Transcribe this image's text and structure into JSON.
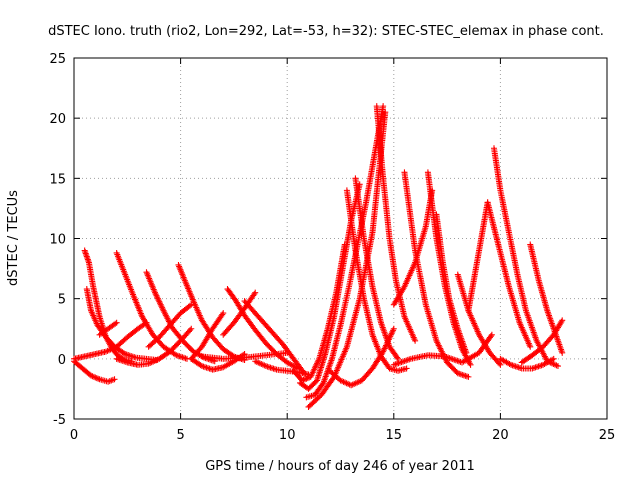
{
  "chart_data": {
    "type": "scatter",
    "title": "dSTEC Iono. truth (rio2, Lon=292, Lat=-53, h=32): STEC-STEC_elemax in phase cont.",
    "xlabel": "GPS time / hours of day 246 of year 2011",
    "ylabel": "dSTEC  / TECUs",
    "xlim": [
      0,
      25
    ],
    "ylim": [
      -5,
      25
    ],
    "xticks": [
      0,
      5,
      10,
      15,
      20,
      25
    ],
    "yticks": [
      -5,
      0,
      5,
      10,
      15,
      20,
      25
    ],
    "grid": true,
    "marker": "+",
    "color": "#ff0000",
    "series": [
      {
        "x": [
          0.0,
          0.4,
          0.8,
          1.2,
          1.6,
          1.9
        ],
        "y": [
          -0.2,
          -0.8,
          -1.4,
          -1.7,
          -1.9,
          -1.7
        ]
      },
      {
        "x": [
          0.0,
          0.5,
          1.0,
          1.5,
          2.0,
          2.5,
          3.0,
          3.4
        ],
        "y": [
          0.0,
          0.2,
          0.4,
          0.6,
          1.0,
          1.8,
          2.5,
          3.0
        ]
      },
      {
        "x": [
          0.5,
          0.7,
          0.9,
          1.2,
          1.5,
          1.8,
          2.1,
          2.4,
          2.7
        ],
        "y": [
          9.0,
          8.0,
          6.0,
          3.5,
          1.8,
          0.8,
          0.2,
          -0.1,
          -0.2
        ]
      },
      {
        "x": [
          0.6,
          0.8,
          1.1,
          1.5,
          1.9,
          2.4,
          2.9,
          3.4,
          3.9
        ],
        "y": [
          5.8,
          4.0,
          2.8,
          1.8,
          1.0,
          0.4,
          0.1,
          0.0,
          -0.1
        ]
      },
      {
        "x": [
          1.2,
          1.6,
          2.0
        ],
        "y": [
          2.0,
          2.5,
          3.0
        ]
      },
      {
        "x": [
          2.0,
          2.4,
          2.8,
          3.2,
          3.7,
          4.2,
          4.8,
          5.3
        ],
        "y": [
          8.8,
          7.0,
          5.2,
          3.5,
          2.0,
          1.0,
          0.3,
          0.0
        ]
      },
      {
        "x": [
          2.0,
          2.5,
          3.0,
          3.5,
          4.0,
          4.5,
          5.0,
          5.5
        ],
        "y": [
          0.0,
          -0.3,
          -0.5,
          -0.4,
          0.0,
          0.6,
          1.5,
          2.5
        ]
      },
      {
        "x": [
          3.4,
          3.8,
          4.2,
          4.6,
          5.1,
          5.6,
          6.1,
          6.6
        ],
        "y": [
          7.2,
          5.5,
          4.0,
          2.6,
          1.5,
          0.6,
          0.1,
          -0.2
        ]
      },
      {
        "x": [
          3.5,
          4.0,
          4.5,
          5.0,
          5.5
        ],
        "y": [
          1.0,
          1.8,
          2.8,
          3.8,
          4.5
        ]
      },
      {
        "x": [
          4.9,
          5.2,
          5.6,
          6.0,
          6.5,
          7.0,
          7.5,
          8.0
        ],
        "y": [
          7.8,
          6.5,
          4.8,
          3.2,
          1.8,
          0.8,
          0.2,
          -0.1
        ]
      },
      {
        "x": [
          5.5,
          6.0,
          6.5,
          7.0,
          7.5,
          8.0
        ],
        "y": [
          0.0,
          -0.6,
          -0.9,
          -0.7,
          -0.2,
          0.4
        ]
      },
      {
        "x": [
          5.5,
          6.0,
          6.5,
          7.0
        ],
        "y": [
          0.0,
          1.0,
          2.5,
          3.8
        ]
      },
      {
        "x": [
          7.2,
          7.6,
          8.0,
          8.5,
          9.0,
          9.5,
          10.0,
          10.5
        ],
        "y": [
          5.8,
          4.8,
          3.6,
          2.4,
          1.3,
          0.4,
          -0.3,
          -0.8
        ]
      },
      {
        "x": [
          7.0,
          7.5,
          8.0,
          8.5
        ],
        "y": [
          2.0,
          3.0,
          4.2,
          5.5
        ]
      },
      {
        "x": [
          6.0,
          7.0,
          8.0,
          9.0,
          10.0
        ],
        "y": [
          0.2,
          0.0,
          0.1,
          0.3,
          0.5
        ]
      },
      {
        "x": [
          8.0,
          8.6,
          9.2,
          9.8,
          10.3,
          10.8
        ],
        "y": [
          4.8,
          3.6,
          2.4,
          1.2,
          0.0,
          -1.2
        ]
      },
      {
        "x": [
          8.5,
          9.0,
          9.5,
          10.0,
          10.5,
          11.0
        ],
        "y": [
          -0.2,
          -0.6,
          -0.9,
          -1.0,
          -1.1,
          -1.3
        ]
      },
      {
        "x": [
          10.3,
          10.7,
          11.1,
          11.5,
          11.9,
          12.3,
          12.7
        ],
        "y": [
          -1.0,
          -1.8,
          -1.5,
          0.0,
          2.5,
          5.5,
          9.5
        ]
      },
      {
        "x": [
          10.6,
          11.0,
          11.4,
          11.8,
          12.2,
          12.6,
          13.0,
          13.4
        ],
        "y": [
          -2.0,
          -2.5,
          -1.8,
          0.5,
          3.5,
          7.5,
          11.5,
          14.5
        ]
      },
      {
        "x": [
          10.9,
          11.3,
          11.7,
          12.1,
          12.5,
          12.9,
          13.3,
          13.7,
          14.1,
          14.5
        ],
        "y": [
          -3.2,
          -3.0,
          -2.0,
          0.0,
          2.8,
          6.0,
          9.5,
          13.0,
          17.0,
          21.0
        ]
      },
      {
        "x": [
          11.0,
          11.6,
          12.2,
          12.8,
          13.4,
          14.0,
          14.6
        ],
        "y": [
          -4.0,
          -3.0,
          -1.5,
          1.0,
          5.0,
          10.5,
          20.5
        ]
      },
      {
        "x": [
          12.8,
          13.2,
          13.6,
          14.0,
          14.4,
          14.8,
          15.2,
          15.6
        ],
        "y": [
          14.0,
          9.0,
          5.0,
          2.0,
          0.2,
          -0.8,
          -1.0,
          -0.8
        ]
      },
      {
        "x": [
          13.2,
          13.6,
          14.0,
          14.4,
          14.8,
          15.2
        ],
        "y": [
          15.0,
          10.0,
          6.0,
          3.0,
          1.0,
          0.0
        ]
      },
      {
        "x": [
          14.2,
          14.5,
          14.8,
          15.1,
          15.5,
          16.0
        ],
        "y": [
          21.0,
          15.0,
          10.0,
          6.5,
          3.5,
          1.5
        ]
      },
      {
        "x": [
          12.0,
          12.5,
          13.0,
          13.5,
          14.0,
          14.5,
          15.0
        ],
        "y": [
          -1.0,
          -1.8,
          -2.2,
          -1.8,
          -0.8,
          0.6,
          2.5
        ]
      },
      {
        "x": [
          15.5,
          16.0,
          16.5,
          17.0,
          17.5,
          18.0,
          18.5
        ],
        "y": [
          15.5,
          9.0,
          4.5,
          1.5,
          -0.3,
          -1.2,
          -1.5
        ]
      },
      {
        "x": [
          15.0,
          15.5,
          16.0,
          16.5,
          16.8
        ],
        "y": [
          4.5,
          6.0,
          8.0,
          11.0,
          14.0
        ]
      },
      {
        "x": [
          16.6,
          17.0,
          17.4,
          17.8,
          18.2,
          18.6
        ],
        "y": [
          15.5,
          10.0,
          6.0,
          3.0,
          0.8,
          -0.5
        ]
      },
      {
        "x": [
          17.0,
          17.3,
          17.6,
          18.0,
          18.4
        ],
        "y": [
          12.0,
          8.0,
          5.0,
          2.5,
          0.5
        ]
      },
      {
        "x": [
          15.0,
          15.8,
          16.6,
          17.4,
          18.2,
          19.0,
          19.6
        ],
        "y": [
          -0.5,
          0.0,
          0.3,
          0.2,
          -0.3,
          0.5,
          2.0
        ]
      },
      {
        "x": [
          18.0,
          18.5,
          19.0,
          19.5,
          20.0
        ],
        "y": [
          7.0,
          4.0,
          2.0,
          0.5,
          -0.5
        ]
      },
      {
        "x": [
          18.5,
          18.8,
          19.1,
          19.4
        ],
        "y": [
          4.0,
          7.0,
          10.0,
          13.0
        ]
      },
      {
        "x": [
          19.7,
          20.0,
          20.4,
          20.8,
          21.2,
          21.7,
          22.2,
          22.7
        ],
        "y": [
          17.5,
          14.0,
          10.5,
          7.0,
          4.0,
          1.5,
          -0.2,
          -0.6
        ]
      },
      {
        "x": [
          19.4,
          19.9,
          20.4,
          20.9,
          21.4
        ],
        "y": [
          13.0,
          9.5,
          6.0,
          3.0,
          1.0
        ]
      },
      {
        "x": [
          20.0,
          20.5,
          21.0,
          21.5,
          22.0,
          22.5
        ],
        "y": [
          0.0,
          -0.5,
          -0.8,
          -0.8,
          -0.5,
          0.0
        ]
      },
      {
        "x": [
          21.4,
          21.8,
          22.2,
          22.6,
          22.9
        ],
        "y": [
          9.5,
          6.5,
          4.0,
          2.0,
          0.5
        ]
      },
      {
        "x": [
          21.0,
          21.5,
          22.0,
          22.5,
          22.9
        ],
        "y": [
          -0.3,
          0.3,
          1.0,
          2.0,
          3.2
        ]
      }
    ]
  }
}
